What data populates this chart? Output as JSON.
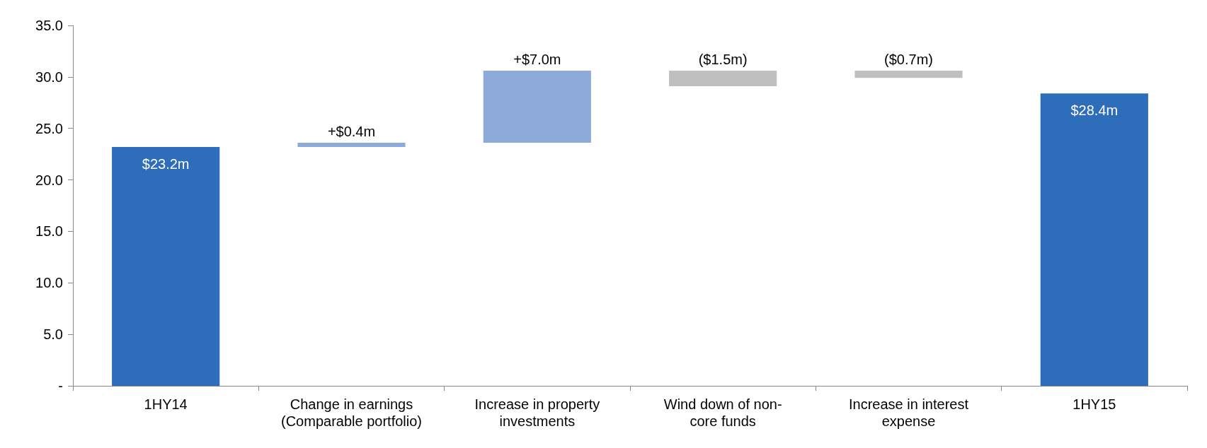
{
  "chart_data": {
    "type": "bar",
    "categories": [
      "1HY14",
      "Change in earnings\n(Comparable portfolio)",
      "Increase in property\ninvestments",
      "Wind down of non-\ncore funds",
      "Increase in interest\nexpense",
      "1HY15"
    ],
    "values": [
      23.2,
      0.4,
      7.0,
      -1.5,
      -0.7,
      28.4
    ],
    "base": [
      0,
      23.2,
      23.6,
      30.6,
      30.6,
      0
    ],
    "colors": [
      "#2e6db9",
      "#8eaad8",
      "#8eaad8",
      "#bfbfbf",
      "#bfbfbf",
      "#2e6db9"
    ],
    "value_labels": [
      "$23.2m",
      "+$0.4m",
      "+$7.0m",
      "($1.5m)",
      "($0.7m)",
      "$28.4m"
    ],
    "ylim": [
      0,
      35
    ],
    "yticks": [
      {
        "value": 0,
        "label": "-"
      },
      {
        "value": 5,
        "label": "5.0"
      },
      {
        "value": 10,
        "label": "10.0"
      },
      {
        "value": 15,
        "label": "15.0"
      },
      {
        "value": 20,
        "label": "20.0"
      },
      {
        "value": 25,
        "label": "25.0"
      },
      {
        "value": 30,
        "label": "30.0"
      },
      {
        "value": 35,
        "label": "35.0"
      }
    ],
    "grid": false
  }
}
